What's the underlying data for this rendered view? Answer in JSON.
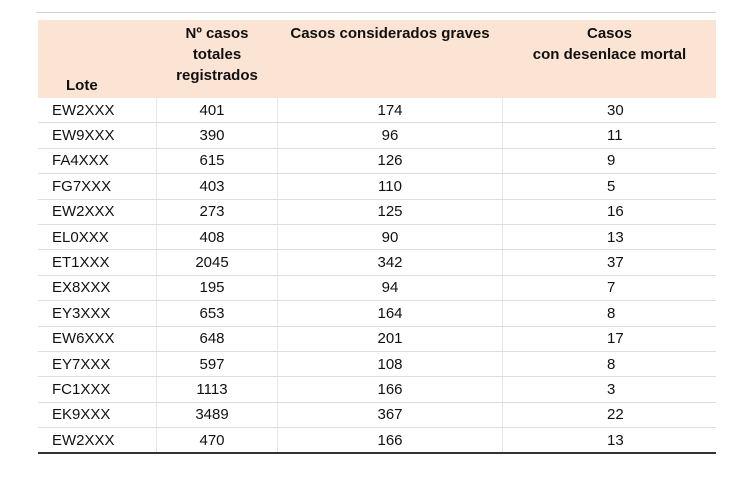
{
  "table": {
    "headers": [
      "Lote",
      "Nº casos\ntotales\nregistrados",
      "Casos considerados graves",
      "Casos\ncon desenlace mortal"
    ],
    "rows": [
      [
        "EW2XXX",
        401,
        174,
        30
      ],
      [
        "EW9XXX",
        390,
        96,
        11
      ],
      [
        "FA4XXX",
        615,
        126,
        9
      ],
      [
        "FG7XXX",
        403,
        110,
        5
      ],
      [
        "EW2XXX",
        273,
        125,
        16
      ],
      [
        "EL0XXX",
        408,
        90,
        13
      ],
      [
        "ET1XXX",
        2045,
        342,
        37
      ],
      [
        "EX8XXX",
        195,
        94,
        7
      ],
      [
        "EY3XXX",
        653,
        164,
        8
      ],
      [
        "EW6XXX",
        648,
        201,
        17
      ],
      [
        "EY7XXX",
        597,
        108,
        8
      ],
      [
        "FC1XXX",
        1113,
        166,
        3
      ],
      [
        "EK9XXX",
        3489,
        367,
        22
      ],
      [
        "EW2XXX",
        470,
        166,
        13
      ]
    ]
  }
}
